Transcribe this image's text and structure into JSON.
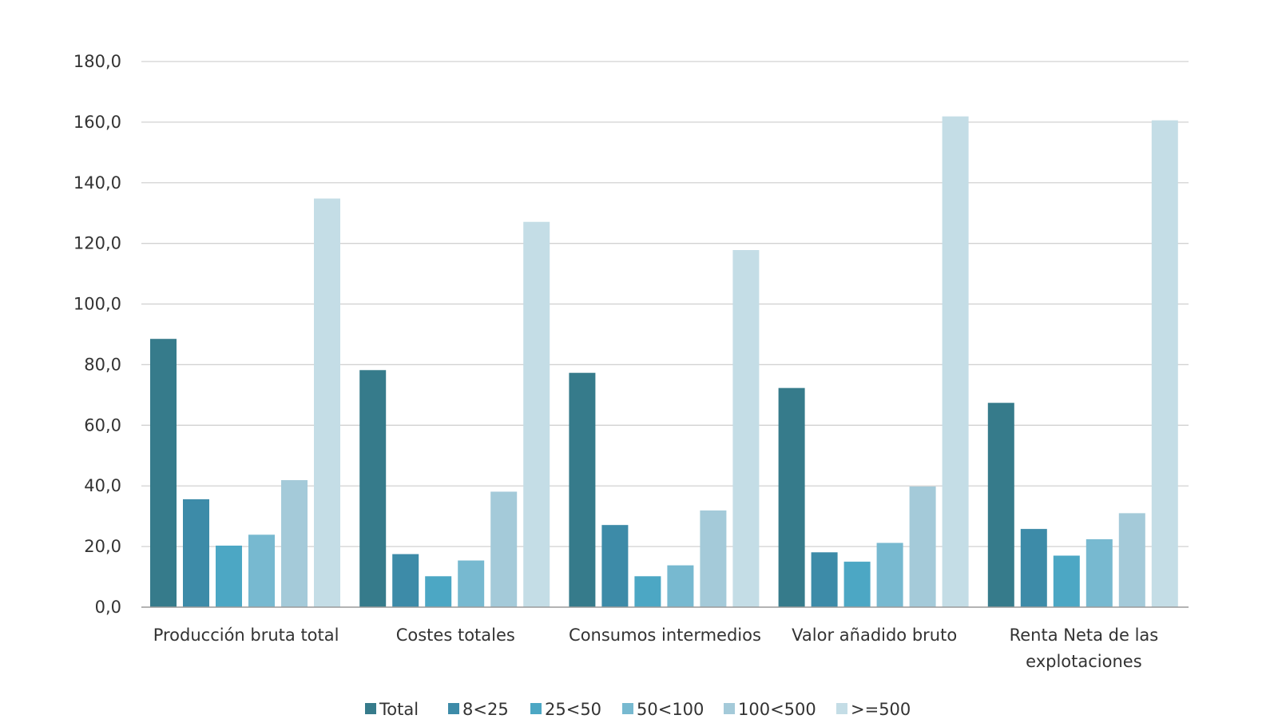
{
  "chart_data": {
    "type": "bar",
    "categories": [
      [
        "Producción bruta total"
      ],
      [
        "Costes totales"
      ],
      [
        "Consumos intermedios"
      ],
      [
        "Valor añadido bruto"
      ],
      [
        "Renta Neta de las",
        "explotaciones"
      ]
    ],
    "series": [
      {
        "name": "Total",
        "color": "#367b8b",
        "values": [
          88.5,
          78.2,
          77.3,
          72.3,
          67.4
        ]
      },
      {
        "name": "8<25",
        "color": "#3d8ba8",
        "values": [
          35.6,
          17.5,
          27.1,
          18.1,
          25.8
        ]
      },
      {
        "name": "25<50",
        "color": "#4ca7c4",
        "values": [
          20.3,
          10.2,
          10.2,
          15.0,
          17.0
        ]
      },
      {
        "name": "50<100",
        "color": "#77b9d0",
        "values": [
          23.9,
          15.4,
          13.8,
          21.2,
          22.4
        ]
      },
      {
        "name": "100<500",
        "color": "#a4cad9",
        "values": [
          41.9,
          38.1,
          31.9,
          39.8,
          31.0
        ]
      },
      {
        "name": ">=500",
        "color": "#c4dde6",
        "values": [
          134.8,
          127.1,
          117.8,
          161.9,
          160.6
        ]
      }
    ],
    "ylim": [
      0,
      180
    ],
    "yticks": [
      "0,0",
      "20,0",
      "40,0",
      "60,0",
      "80,0",
      "100,0",
      "120,0",
      "140,0",
      "160,0",
      "180,0"
    ],
    "grid": true,
    "legend_position": "bottom",
    "title": "",
    "xlabel": "",
    "ylabel": ""
  }
}
